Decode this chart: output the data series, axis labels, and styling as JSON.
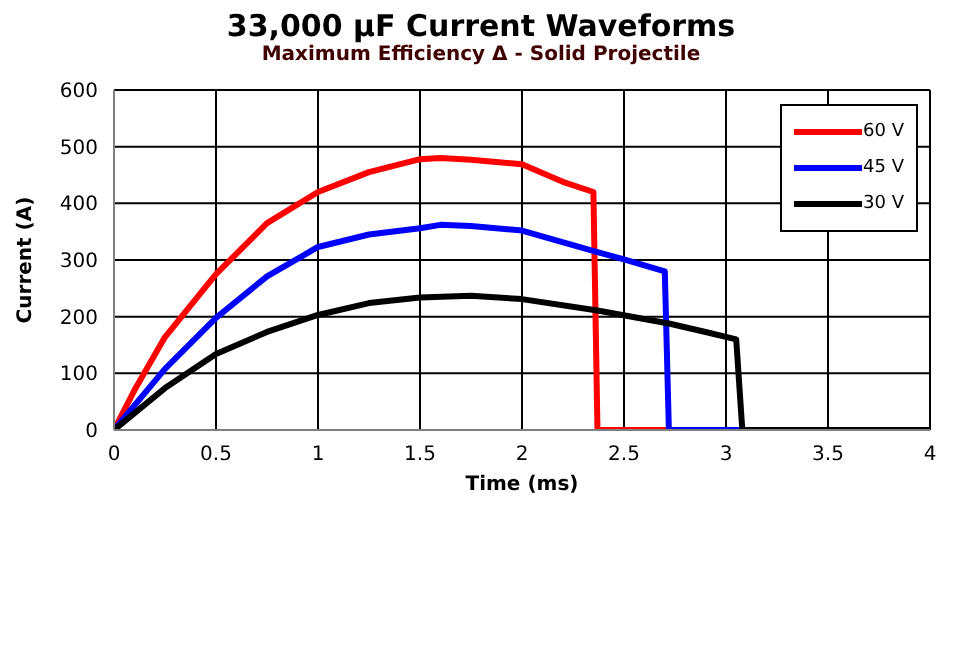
{
  "chart_data": {
    "type": "line",
    "title": "33,000 µF Current Waveforms",
    "subtitle": "Maximum Efficiency Δ - Solid Projectile",
    "xlabel": "Time (ms)",
    "ylabel": "Current (A)",
    "xlim": [
      0,
      4
    ],
    "xticks": [
      0,
      0.5,
      1,
      1.5,
      2,
      2.5,
      3,
      3.5,
      4
    ],
    "ylim": [
      0,
      600
    ],
    "yticks": [
      0,
      100,
      200,
      300,
      400,
      500,
      600
    ],
    "grid": true,
    "legend": "top right",
    "marker": "none",
    "line_style": "solid",
    "series": [
      {
        "name": "60 V",
        "color": "#ff0000",
        "x": [
          0,
          0.1,
          0.25,
          0.5,
          0.75,
          1,
          1.25,
          1.5,
          1.6,
          1.75,
          2,
          2.2,
          2.35,
          2.37,
          2.72
        ],
        "values": [
          0,
          70,
          164,
          275,
          365,
          420,
          455,
          478,
          480,
          477,
          469,
          438,
          420,
          0,
          0
        ]
      },
      {
        "name": "45 V",
        "color": "#0000ff",
        "x": [
          0,
          0.25,
          0.5,
          0.75,
          1,
          1.25,
          1.5,
          1.6,
          1.75,
          2,
          2.37,
          2.5,
          2.7,
          2.72,
          3.08
        ],
        "values": [
          0,
          108,
          198,
          271,
          323,
          345,
          356,
          362,
          360,
          352,
          314,
          301,
          280,
          0,
          0
        ]
      },
      {
        "name": "30 V",
        "color": "#000000",
        "x": [
          0,
          0.25,
          0.5,
          0.75,
          1,
          1.25,
          1.5,
          1.75,
          2,
          2.37,
          2.72,
          2.9,
          3.05,
          3.08,
          4
        ],
        "values": [
          0,
          74,
          134,
          173,
          203,
          224,
          234,
          237,
          231,
          211,
          188,
          173,
          160,
          0,
          0
        ]
      }
    ]
  }
}
